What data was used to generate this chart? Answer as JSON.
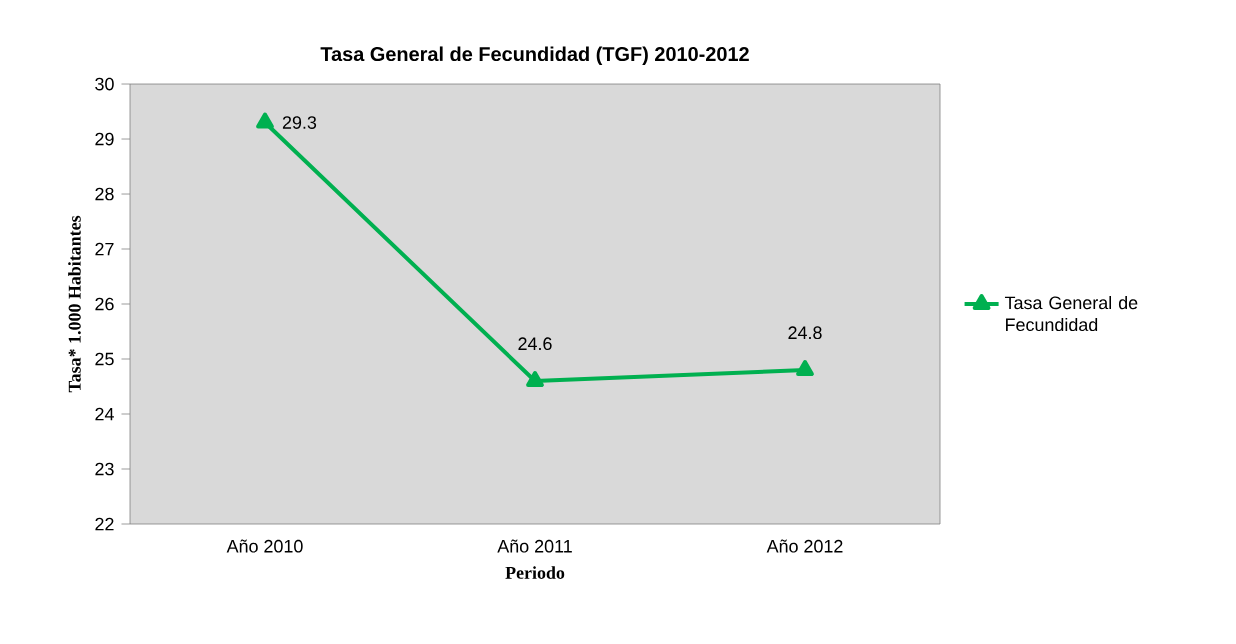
{
  "chart_data": {
    "type": "line",
    "title": "Tasa General de Fecundidad (TGF)  2010-2012",
    "xlabel": "Periodo",
    "ylabel": "Tasa* 1.000 Habitantes",
    "categories": [
      "Año 2010",
      "Año 2011",
      "Año 2012"
    ],
    "series": [
      {
        "name": "Tasa General de Fecundidad",
        "color": "#00b050",
        "values": [
          29.3,
          24.6,
          24.8
        ]
      }
    ],
    "ylim": [
      22,
      30
    ],
    "yticks": [
      22,
      23,
      24,
      25,
      26,
      27,
      28,
      29,
      30
    ],
    "grid": false,
    "legend": "right",
    "marker": "triangle",
    "line_style": "solid",
    "data_labels": true
  }
}
